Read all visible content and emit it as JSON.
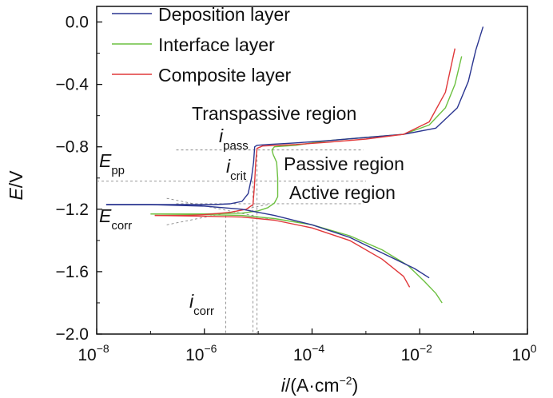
{
  "chart_data": {
    "type": "line",
    "xscale": "log",
    "xlim": [
      1e-08,
      1
    ],
    "ylim": [
      -2.0,
      0.1
    ],
    "xticks": [
      "10",
      "10",
      "10",
      "10",
      "10"
    ],
    "xtick_exponents": [
      "−8",
      "−6",
      "−4",
      "−2",
      "0"
    ],
    "xtick_values": [
      1e-08,
      1e-06,
      0.0001,
      0.01,
      1
    ],
    "yticks": [
      "−2.0",
      "−1.6",
      "−1.2",
      "−0.8",
      "−0.4",
      "0.0"
    ],
    "ytick_values": [
      -2.0,
      -1.6,
      -1.2,
      -0.8,
      -0.4,
      0.0
    ],
    "xlabel": {
      "symbol": "i",
      "unit": "/(A·cm",
      "exp": "−2",
      "close": ")"
    },
    "ylabel": {
      "symbol": "E",
      "unit": "/V"
    },
    "legend_position": "top-left",
    "series": [
      {
        "name": "Deposition layer",
        "color": "#2a3590",
        "x": [
          1.5e-08,
          1e-07,
          5e-07,
          1.5e-06,
          3e-06,
          5e-06,
          6.5e-06,
          7.5e-06,
          8.2e-06,
          8.6e-06,
          9.5e-06,
          1.5e-05,
          5e-05,
          0.0002,
          0.001,
          0.005,
          0.02,
          0.05,
          0.08,
          0.11,
          0.15
        ],
        "y": [
          -1.17,
          -1.17,
          -1.17,
          -1.17,
          -1.165,
          -1.15,
          -1.1,
          -1.0,
          -0.9,
          -0.8,
          -0.79,
          -0.785,
          -0.775,
          -0.76,
          -0.74,
          -0.72,
          -0.68,
          -0.55,
          -0.38,
          -0.18,
          -0.03
        ]
      },
      {
        "name": "Interface layer",
        "color": "#6cc040",
        "x": [
          1e-07,
          1e-06,
          5e-06,
          1e-05,
          1.5e-05,
          2e-05,
          2.3e-05,
          2.3e-05,
          2.2e-05,
          1.9e-05,
          1.8e-05,
          2e-05,
          5e-05,
          0.0002,
          0.001,
          0.005,
          0.015,
          0.03,
          0.045,
          0.06
        ],
        "y": [
          -1.23,
          -1.23,
          -1.225,
          -1.21,
          -1.19,
          -1.16,
          -1.12,
          -1.0,
          -0.9,
          -0.85,
          -0.82,
          -0.8,
          -0.79,
          -0.76,
          -0.74,
          -0.72,
          -0.66,
          -0.55,
          -0.4,
          -0.22
        ],
        "cathodic": {
          "x": [
            1e-07,
            1e-06,
            5e-06,
            2e-05,
            0.0001,
            0.0005,
            0.002,
            0.006,
            0.012,
            0.02,
            0.026
          ],
          "y": [
            -1.23,
            -1.235,
            -1.24,
            -1.26,
            -1.3,
            -1.37,
            -1.46,
            -1.56,
            -1.66,
            -1.74,
            -1.8
          ]
        }
      },
      {
        "name": "Composite layer",
        "color": "#e0383a",
        "x": [
          1.2e-07,
          5e-07,
          1e-06,
          3e-06,
          6e-06,
          8e-06,
          8.5e-06,
          9e-06,
          9.5e-06,
          1.2e-05,
          5e-05,
          0.0002,
          0.001,
          0.005,
          0.015,
          0.03,
          0.045
        ],
        "y": [
          -1.24,
          -1.24,
          -1.235,
          -1.22,
          -1.2,
          -1.17,
          -1.05,
          -0.9,
          -0.81,
          -0.795,
          -0.785,
          -0.77,
          -0.75,
          -0.72,
          -0.64,
          -0.45,
          -0.17
        ],
        "cathodic": {
          "x": [
            1.2e-07,
            1e-06,
            5e-06,
            2e-05,
            0.0001,
            0.0005,
            0.002,
            0.005,
            0.0065
          ],
          "y": [
            -1.24,
            -1.245,
            -1.25,
            -1.27,
            -1.32,
            -1.4,
            -1.52,
            -1.63,
            -1.7
          ]
        }
      }
    ],
    "deposition_cathodic": {
      "x": [
        1.5e-08,
        1e-07,
        1e-06,
        5e-06,
        2e-05,
        0.0001,
        0.0005,
        0.002,
        0.008,
        0.015
      ],
      "y": [
        -1.17,
        -1.17,
        -1.18,
        -1.2,
        -1.24,
        -1.3,
        -1.38,
        -1.48,
        -1.58,
        -1.64
      ]
    },
    "annotations": {
      "transpassive": "Transpassive region",
      "passive": "Passive region",
      "active": "Active region",
      "ipass_sym": "i",
      "ipass_sub": "pass",
      "icrit_sym": "i",
      "icrit_sub": "crit",
      "epp_sym": "E",
      "epp_sub": "pp",
      "ecorr_sym": "E",
      "ecorr_sub": "corr",
      "icorr_sym": "i",
      "icorr_sub": "corr"
    },
    "reference_lines": {
      "E_pass": -0.82,
      "E_pp": -1.02,
      "E_active": -1.165,
      "E_corr": -1.24,
      "i_corr": 2.5e-06,
      "i_crit": 8e-06,
      "i_pass": 9.5e-06
    }
  }
}
